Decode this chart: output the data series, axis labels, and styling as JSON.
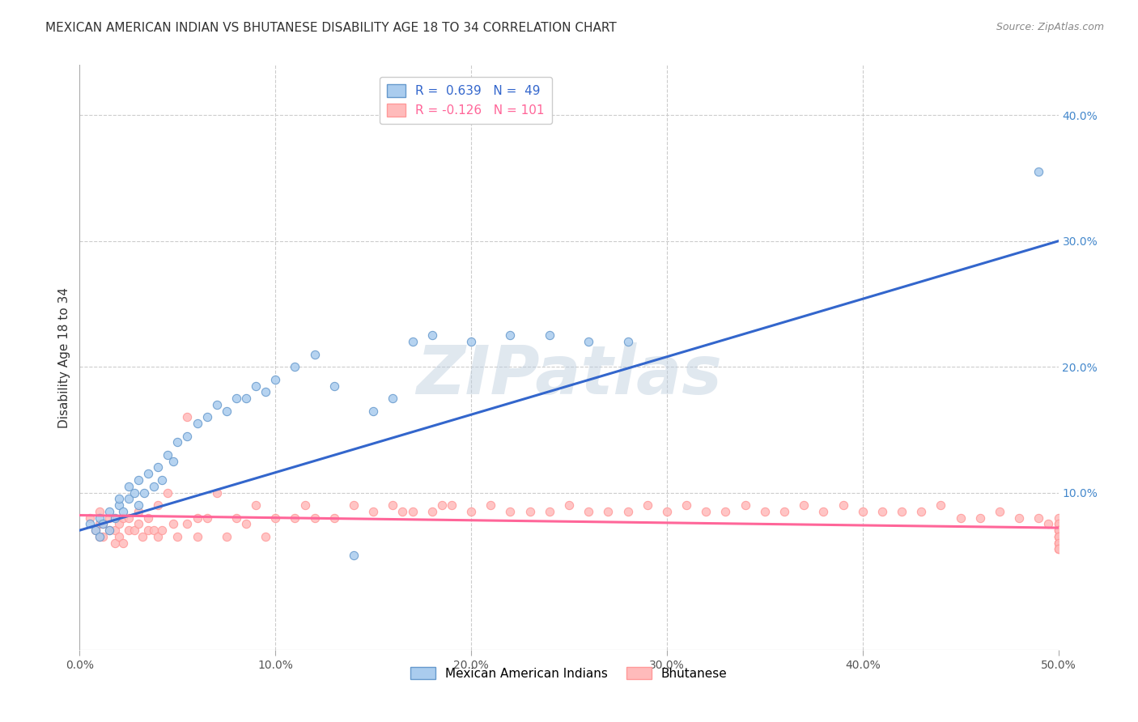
{
  "title": "MEXICAN AMERICAN INDIAN VS BHUTANESE DISABILITY AGE 18 TO 34 CORRELATION CHART",
  "source": "Source: ZipAtlas.com",
  "ylabel": "Disability Age 18 to 34",
  "watermark": "ZIPatlas",
  "xlim": [
    0.0,
    0.5
  ],
  "ylim": [
    -0.025,
    0.44
  ],
  "xticks": [
    0.0,
    0.1,
    0.2,
    0.3,
    0.4,
    0.5
  ],
  "xticklabels": [
    "0.0%",
    "10.0%",
    "20.0%",
    "30.0%",
    "40.0%",
    "50.0%"
  ],
  "yticks_right": [
    0.1,
    0.2,
    0.3,
    0.4
  ],
  "yticklabels_right": [
    "10.0%",
    "20.0%",
    "30.0%",
    "40.0%"
  ],
  "blue_color": "#6699CC",
  "pink_color": "#FF9999",
  "blue_line_color": "#3366CC",
  "pink_line_color": "#FF6699",
  "blue_scatter_face": "#AACCEE",
  "pink_scatter_face": "#FFBBBB",
  "background_color": "#FFFFFF",
  "grid_color": "#CCCCCC",
  "blue_x": [
    0.005,
    0.008,
    0.01,
    0.01,
    0.012,
    0.015,
    0.015,
    0.018,
    0.02,
    0.02,
    0.022,
    0.025,
    0.025,
    0.028,
    0.03,
    0.03,
    0.033,
    0.035,
    0.038,
    0.04,
    0.042,
    0.045,
    0.048,
    0.05,
    0.055,
    0.06,
    0.065,
    0.07,
    0.075,
    0.08,
    0.085,
    0.09,
    0.095,
    0.1,
    0.11,
    0.12,
    0.13,
    0.14,
    0.15,
    0.16,
    0.17,
    0.18,
    0.2,
    0.22,
    0.24,
    0.26,
    0.28,
    0.49
  ],
  "blue_y": [
    0.075,
    0.07,
    0.08,
    0.065,
    0.075,
    0.085,
    0.07,
    0.08,
    0.09,
    0.095,
    0.085,
    0.095,
    0.105,
    0.1,
    0.09,
    0.11,
    0.1,
    0.115,
    0.105,
    0.12,
    0.11,
    0.13,
    0.125,
    0.14,
    0.145,
    0.155,
    0.16,
    0.17,
    0.165,
    0.175,
    0.175,
    0.185,
    0.18,
    0.19,
    0.2,
    0.21,
    0.185,
    0.05,
    0.165,
    0.175,
    0.22,
    0.225,
    0.22,
    0.225,
    0.225,
    0.22,
    0.22,
    0.355
  ],
  "pink_x": [
    0.005,
    0.008,
    0.01,
    0.01,
    0.01,
    0.012,
    0.012,
    0.015,
    0.015,
    0.018,
    0.018,
    0.02,
    0.02,
    0.022,
    0.022,
    0.025,
    0.025,
    0.028,
    0.03,
    0.03,
    0.032,
    0.035,
    0.035,
    0.038,
    0.04,
    0.04,
    0.042,
    0.045,
    0.048,
    0.05,
    0.055,
    0.055,
    0.06,
    0.06,
    0.065,
    0.07,
    0.075,
    0.08,
    0.085,
    0.09,
    0.095,
    0.1,
    0.11,
    0.115,
    0.12,
    0.13,
    0.14,
    0.15,
    0.16,
    0.165,
    0.17,
    0.18,
    0.185,
    0.19,
    0.2,
    0.21,
    0.22,
    0.23,
    0.24,
    0.25,
    0.26,
    0.27,
    0.28,
    0.29,
    0.3,
    0.31,
    0.32,
    0.33,
    0.34,
    0.35,
    0.36,
    0.37,
    0.38,
    0.39,
    0.4,
    0.41,
    0.42,
    0.43,
    0.44,
    0.45,
    0.46,
    0.47,
    0.48,
    0.49,
    0.495,
    0.5,
    0.5,
    0.5,
    0.5,
    0.5,
    0.5,
    0.5,
    0.5,
    0.5,
    0.5,
    0.5,
    0.5,
    0.5,
    0.5,
    0.5,
    0.5
  ],
  "pink_y": [
    0.08,
    0.07,
    0.075,
    0.065,
    0.085,
    0.075,
    0.065,
    0.07,
    0.08,
    0.07,
    0.06,
    0.075,
    0.065,
    0.08,
    0.06,
    0.07,
    0.08,
    0.07,
    0.075,
    0.085,
    0.065,
    0.07,
    0.08,
    0.07,
    0.065,
    0.09,
    0.07,
    0.1,
    0.075,
    0.065,
    0.075,
    0.16,
    0.065,
    0.08,
    0.08,
    0.1,
    0.065,
    0.08,
    0.075,
    0.09,
    0.065,
    0.08,
    0.08,
    0.09,
    0.08,
    0.08,
    0.09,
    0.085,
    0.09,
    0.085,
    0.085,
    0.085,
    0.09,
    0.09,
    0.085,
    0.09,
    0.085,
    0.085,
    0.085,
    0.09,
    0.085,
    0.085,
    0.085,
    0.09,
    0.085,
    0.09,
    0.085,
    0.085,
    0.09,
    0.085,
    0.085,
    0.09,
    0.085,
    0.09,
    0.085,
    0.085,
    0.085,
    0.085,
    0.09,
    0.08,
    0.08,
    0.085,
    0.08,
    0.08,
    0.075,
    0.075,
    0.08,
    0.075,
    0.07,
    0.065,
    0.07,
    0.065,
    0.06,
    0.07,
    0.065,
    0.06,
    0.065,
    0.055,
    0.06,
    0.055,
    0.055
  ],
  "blue_trend_x0": 0.0,
  "blue_trend_y0": 0.07,
  "blue_trend_x1": 0.5,
  "blue_trend_y1": 0.3,
  "pink_trend_x0": 0.0,
  "pink_trend_y0": 0.082,
  "pink_trend_x1": 0.5,
  "pink_trend_y1": 0.072
}
